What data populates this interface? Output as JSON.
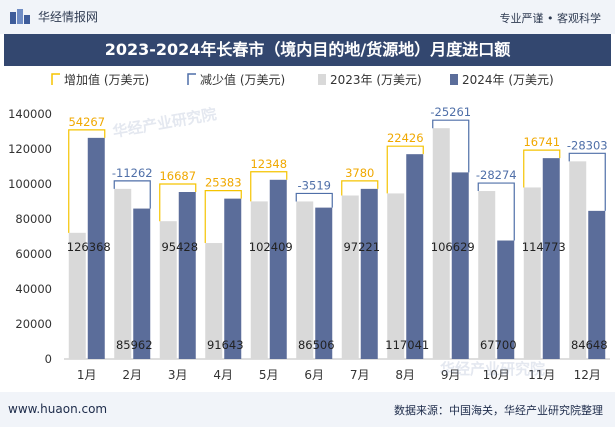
{
  "header": {
    "brand": "华经情报网",
    "tagline": "专业严谨 • 客观科学",
    "title": "2023-2024年长春市（境内目的地/货源地）月度进口额"
  },
  "footer": {
    "site": "www.huaon.com",
    "source": "数据来源：中国海关，华经产业研究院整理"
  },
  "watermarks": [
    "华经产业研究院",
    "华经产业研究院"
  ],
  "colors": {
    "bar_2023": "#d9d9d9",
    "bar_2024": "#5b6d9a",
    "increase": "#f5c400",
    "decrease": "#4f6fa8",
    "increase_text": "#f0a800",
    "decrease_text": "#4f6fa8"
  },
  "chart_data": {
    "type": "bar",
    "categories": [
      "1月",
      "2月",
      "3月",
      "4月",
      "5月",
      "6月",
      "7月",
      "8月",
      "9月",
      "10月",
      "11月",
      "12月"
    ],
    "legend": [
      "增加值 (万美元)",
      "减少值 (万美元)",
      "2023年 (万美元)",
      "2024年 (万美元)"
    ],
    "series": [
      {
        "name": "2023年 (万美元)",
        "values": [
          72101,
          97224,
          78741,
          66260,
          90061,
          90025,
          93441,
          94615,
          131890,
          95974,
          98032,
          112951
        ]
      },
      {
        "name": "2024年 (万美元)",
        "values": [
          126368,
          85962,
          95428,
          91643,
          102409,
          86506,
          97221,
          117041,
          106629,
          67700,
          114773,
          84648
        ]
      }
    ],
    "change": [
      54267,
      -11262,
      16687,
      25383,
      12348,
      -3519,
      3780,
      22426,
      -25261,
      -28274,
      16741,
      -28303
    ],
    "ylim": [
      0,
      140000
    ],
    "yticks": [
      0,
      20000,
      40000,
      60000,
      80000,
      100000,
      120000,
      140000
    ],
    "grid": false,
    "legend_position": "top"
  }
}
